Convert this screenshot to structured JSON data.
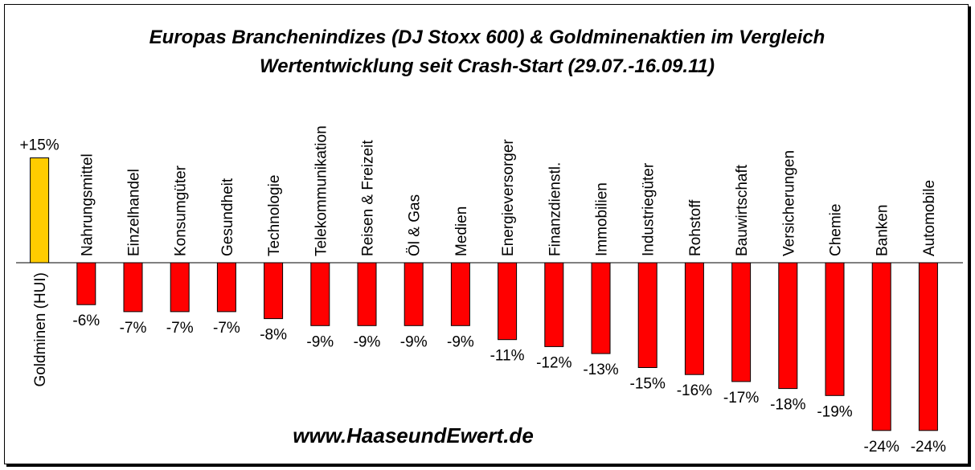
{
  "chart_data": {
    "type": "bar",
    "title": "Europas Branchenindizes (DJ Stoxx 600) & Goldminenaktien im Vergleich",
    "subtitle": "Wertentwicklung seit Crash-Start (29.07.-16.09.11)",
    "xlabel": "",
    "ylabel": "",
    "categories": [
      "Goldminen (HUI)",
      "Nahrungsmittel",
      "Einzelhandel",
      "Konsumgüter",
      "Gesundheit",
      "Technologie",
      "Telekommunikation",
      "Reisen & Freizeit",
      "Öl & Gas",
      "Medien",
      "Energieversorger",
      "Finanzdienstl.",
      "Immobilien",
      "Industriegüter",
      "Rohstoff",
      "Bauwirtschaft",
      "Versicherungen",
      "Chemie",
      "Banken",
      "Automobile"
    ],
    "values": [
      15,
      -6,
      -7,
      -7,
      -7,
      -8,
      -9,
      -9,
      -9,
      -9,
      -11,
      -12,
      -13,
      -15,
      -16,
      -17,
      -18,
      -19,
      -24,
      -24
    ],
    "value_labels": [
      "+15%",
      "-6%",
      "-7%",
      "-7%",
      "-7%",
      "-8%",
      "-9%",
      "-9%",
      "-9%",
      "-9%",
      "-11%",
      "-12%",
      "-13%",
      "-15%",
      "-16%",
      "-17%",
      "-18%",
      "-19%",
      "-24%",
      "-24%"
    ],
    "colors": {
      "positive": "#FFCC00",
      "negative": "#FF0000",
      "border": "#000000"
    },
    "grid": false,
    "legend": "none"
  },
  "watermark": "www.HaaseundEwert.de"
}
